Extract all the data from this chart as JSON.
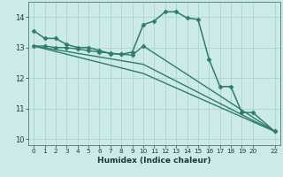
{
  "title": "",
  "xlabel": "Humidex (Indice chaleur)",
  "ylabel": "",
  "bg_color": "#cceae7",
  "line_color": "#2e7d6e",
  "grid_color": "#aad4d0",
  "xlim": [
    -0.5,
    22.5
  ],
  "ylim": [
    9.8,
    14.5
  ],
  "yticks": [
    10,
    11,
    12,
    13,
    14
  ],
  "xticks": [
    0,
    1,
    2,
    3,
    4,
    5,
    6,
    7,
    8,
    9,
    10,
    11,
    12,
    13,
    14,
    15,
    16,
    17,
    18,
    19,
    20,
    22
  ],
  "series": [
    {
      "x": [
        0,
        1,
        2,
        3,
        4,
        5,
        6,
        7,
        8,
        9,
        10,
        11,
        12,
        13,
        14,
        15,
        16,
        17,
        18,
        19,
        20,
        22
      ],
      "y": [
        13.55,
        13.3,
        13.3,
        13.1,
        13.0,
        13.0,
        12.9,
        12.8,
        12.78,
        12.85,
        13.75,
        13.87,
        14.17,
        14.17,
        13.97,
        13.92,
        12.62,
        11.72,
        11.72,
        10.87,
        10.87,
        10.25
      ],
      "marker": "D",
      "markersize": 2.5,
      "linewidth": 1.1,
      "has_marker": true
    },
    {
      "x": [
        0,
        1,
        2,
        3,
        4,
        5,
        6,
        7,
        8,
        9,
        10,
        22
      ],
      "y": [
        13.05,
        13.05,
        13.0,
        13.0,
        12.95,
        12.9,
        12.85,
        12.82,
        12.78,
        12.75,
        13.05,
        10.25
      ],
      "marker": "D",
      "markersize": 2.5,
      "linewidth": 1.0,
      "has_marker": true
    },
    {
      "x": [
        0,
        10,
        22
      ],
      "y": [
        13.05,
        12.45,
        10.25
      ],
      "marker": null,
      "markersize": 0,
      "linewidth": 1.0,
      "has_marker": false
    },
    {
      "x": [
        0,
        10,
        22
      ],
      "y": [
        13.05,
        12.15,
        10.25
      ],
      "marker": null,
      "markersize": 0,
      "linewidth": 1.0,
      "has_marker": false
    }
  ]
}
